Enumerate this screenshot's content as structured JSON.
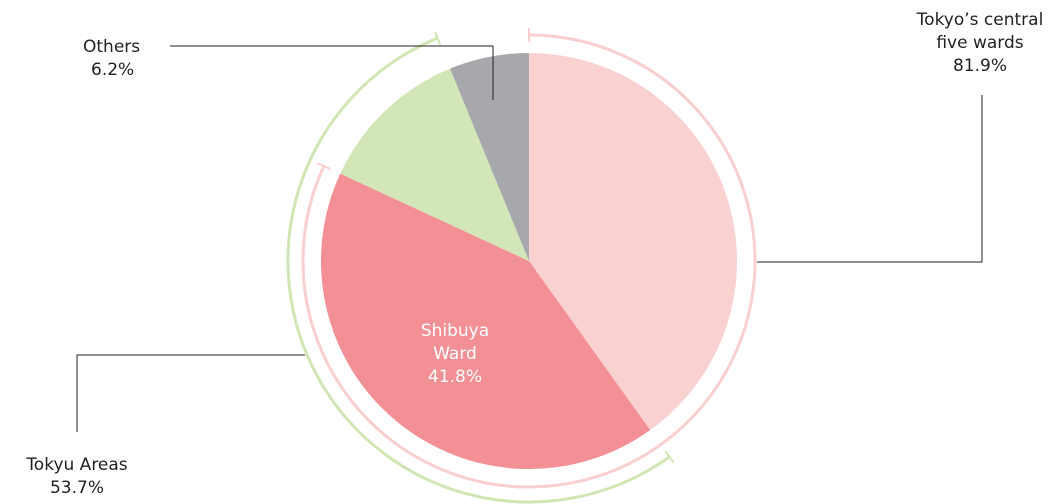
{
  "chart_data": {
    "type": "pie",
    "categories": [
      null,
      "Shibuya Ward",
      null,
      "Others"
    ],
    "values": [
      40.1,
      41.8,
      11.9,
      6.2
    ],
    "value_labels": [
      null,
      "41.8%",
      null,
      "6.2%"
    ],
    "colors": [
      "#f9d1d0",
      "#f29095",
      "#d3e6b7",
      "#a7a8ac"
    ],
    "groups": [
      {
        "name": "Tokyo’s central five wards",
        "value": 81.9,
        "value_label": "81.9%",
        "color": "#f9cfcf"
      },
      {
        "name": "Tokyu Areas",
        "value": 53.7,
        "value_label": "53.7%",
        "color": "#d0e7b4"
      }
    ]
  }
}
